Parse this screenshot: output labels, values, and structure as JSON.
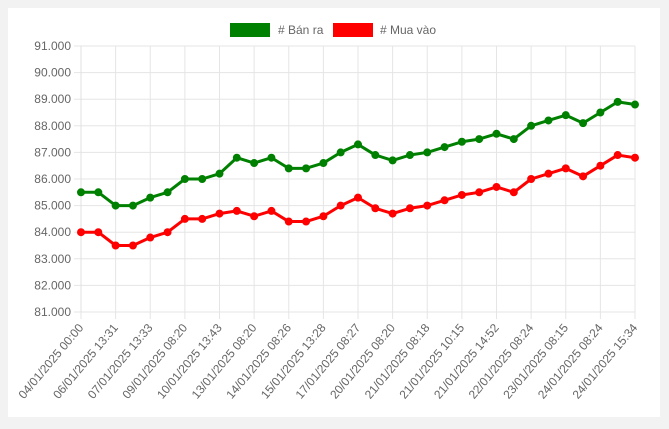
{
  "chart_data": {
    "type": "line",
    "title": "",
    "xlabel": "",
    "ylabel": "",
    "ylim": [
      81000,
      91000
    ],
    "grid": true,
    "legend_position": "top",
    "legend": [
      {
        "label": "# Bán ra",
        "color": "#008000"
      },
      {
        "label": "# Mua vào",
        "color": "#ff0000"
      }
    ],
    "y_ticks": [
      "81.000",
      "82.000",
      "83.000",
      "84.000",
      "85.000",
      "86.000",
      "87.000",
      "88.000",
      "89.000",
      "90.000",
      "91.000"
    ],
    "x_tick_labels": [
      "04/01/2025 00:00",
      "06/01/2025 13:31",
      "07/01/2025 13:33",
      "09/01/2025 08:20",
      "10/01/2025 13:43",
      "13/01/2025 08:20",
      "14/01/2025 08:26",
      "15/01/2025 13:28",
      "17/01/2025 08:27",
      "20/01/2025 08:20",
      "21/01/2025 08:18",
      "21/01/2025 10:15",
      "21/01/2025 14:52",
      "22/01/2025 08:24",
      "23/01/2025 08:15",
      "24/01/2025 08:24",
      "24/01/2025 15:34"
    ],
    "point_count": 33,
    "series": [
      {
        "name": "# Bán ra",
        "color": "#008000",
        "values": [
          85500,
          85500,
          85000,
          85000,
          85300,
          85500,
          86000,
          86000,
          86200,
          86800,
          86600,
          86800,
          86400,
          86400,
          86600,
          87000,
          87300,
          86900,
          86700,
          86900,
          87000,
          87200,
          87400,
          87500,
          87700,
          87500,
          88000,
          88200,
          88400,
          88100,
          88500,
          88900,
          88800
        ]
      },
      {
        "name": "# Mua vào",
        "color": "#ff0000",
        "values": [
          84000,
          84000,
          83500,
          83500,
          83800,
          84000,
          84500,
          84500,
          84700,
          84800,
          84600,
          84800,
          84400,
          84400,
          84600,
          85000,
          85300,
          84900,
          84700,
          84900,
          85000,
          85200,
          85400,
          85500,
          85700,
          85500,
          86000,
          86200,
          86400,
          86100,
          86500,
          86900,
          86800
        ]
      }
    ]
  }
}
